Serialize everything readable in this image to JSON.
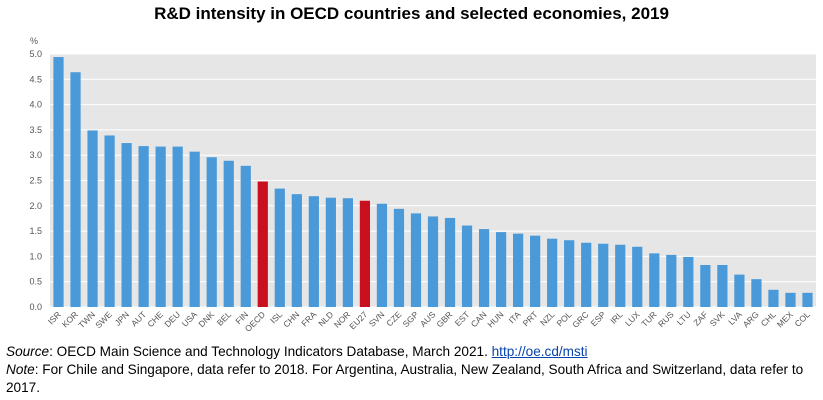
{
  "chart_data": {
    "type": "bar",
    "title": "R&D intensity in OECD countries and selected economies, 2019",
    "ylabel": "%",
    "xlabel": "",
    "ylim": [
      0,
      5
    ],
    "yticks": [
      "0.0",
      "0.5",
      "1.0",
      "1.5",
      "2.0",
      "2.5",
      "3.0",
      "3.5",
      "4.0",
      "4.5",
      "5.0"
    ],
    "grid": true,
    "categories": [
      "ISR",
      "KOR",
      "TWN",
      "SWE",
      "JPN",
      "AUT",
      "CHE",
      "DEU",
      "USA",
      "DNK",
      "BEL",
      "FIN",
      "OECD",
      "ISL",
      "CHN",
      "FRA",
      "NLD",
      "NOR",
      "EU27",
      "SVN",
      "CZE",
      "SGP",
      "AUS",
      "GBR",
      "EST",
      "CAN",
      "HUN",
      "ITA",
      "PRT",
      "NZL",
      "POL",
      "GRC",
      "ESP",
      "IRL",
      "LUX",
      "TUR",
      "RUS",
      "LTU",
      "ZAF",
      "SVK",
      "LVA",
      "ARG",
      "CHL",
      "MEX",
      "COL"
    ],
    "values": [
      4.94,
      4.64,
      3.49,
      3.39,
      3.24,
      3.18,
      3.17,
      3.17,
      3.07,
      2.96,
      2.89,
      2.79,
      2.48,
      2.34,
      2.23,
      2.19,
      2.16,
      2.15,
      2.1,
      2.04,
      1.94,
      1.85,
      1.79,
      1.76,
      1.61,
      1.54,
      1.48,
      1.45,
      1.41,
      1.35,
      1.32,
      1.27,
      1.25,
      1.23,
      1.19,
      1.06,
      1.03,
      0.99,
      0.83,
      0.83,
      0.64,
      0.55,
      0.34,
      0.28,
      0.28
    ],
    "highlight": [
      "OECD",
      "EU27"
    ],
    "colors": {
      "bar": "#4a9ad9",
      "highlight": "#c8101e",
      "plot_bg": "#e6e6e6",
      "grid": "#ffffff"
    }
  },
  "notes": {
    "source_label": "Source",
    "source_text": ": OECD Main Science and Technology Indicators Database, March 2021. ",
    "source_link": "http://oe.cd/msti",
    "note_label": "Note",
    "note_text": ": For Chile and Singapore, data refer to 2018. For Argentina, Australia, New Zealand, South Africa and Switzerland, data refer to 2017."
  }
}
